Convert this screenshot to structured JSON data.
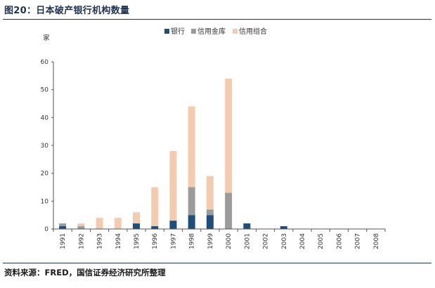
{
  "header": {
    "title": "图20：日本破产银行机构数量"
  },
  "footer": {
    "source": "资料来源：FRED，国信证券经济研究所整理"
  },
  "chart_data": {
    "type": "bar",
    "stacked": true,
    "title": "图20：日本破产银行机构数量",
    "ylabel": "家",
    "xlabel": "",
    "ylim": [
      0,
      60
    ],
    "yticks": [
      0,
      10,
      20,
      30,
      40,
      50,
      60
    ],
    "grid": false,
    "legend_position": "top-right",
    "categories": [
      "1991",
      "1992",
      "1993",
      "1994",
      "1995",
      "1996",
      "1997",
      "1998",
      "1999",
      "2000",
      "2001",
      "2002",
      "2003",
      "2004",
      "2005",
      "2006",
      "2007",
      "2008"
    ],
    "series": [
      {
        "name": "银行",
        "color": "#1f4e79",
        "values": [
          1,
          0,
          0,
          0,
          2,
          1,
          3,
          5,
          5,
          0,
          2,
          0,
          1,
          0,
          0,
          0,
          0,
          0
        ]
      },
      {
        "name": "信用金库",
        "color": "#9b9b9b",
        "values": [
          1,
          1,
          0,
          0,
          0,
          0,
          0,
          10,
          2,
          13,
          0,
          0,
          0,
          0,
          0,
          0,
          0,
          0
        ]
      },
      {
        "name": "信用组合",
        "color": "#f5cbb0",
        "values": [
          0,
          1,
          4,
          4,
          4,
          14,
          25,
          29,
          12,
          41,
          0,
          0,
          0,
          0,
          0,
          0,
          0,
          0
        ]
      }
    ]
  }
}
